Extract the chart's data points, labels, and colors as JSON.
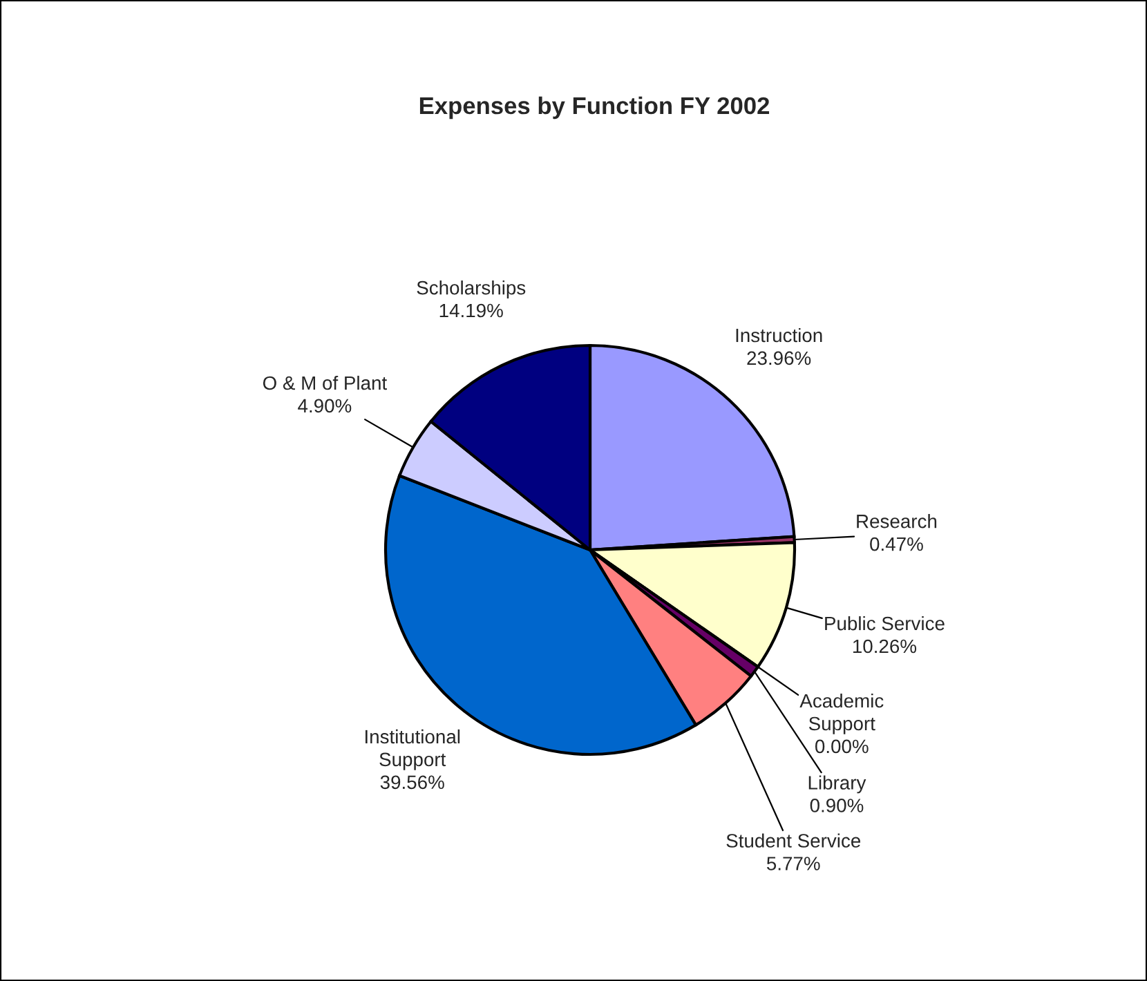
{
  "chart_data": {
    "type": "pie",
    "title": "Expenses by Function FY 2002",
    "categories": [
      "Instruction",
      "Research",
      "Public Service",
      "Academic Support",
      "Library",
      "Student Service",
      "Institutional Support",
      "O & M of Plant",
      "Scholarships"
    ],
    "values": [
      23.96,
      0.47,
      10.26,
      0.0,
      0.9,
      5.77,
      39.56,
      4.9,
      14.19
    ],
    "colors": [
      "#9999ff",
      "#993366",
      "#ffffcc",
      "#ccffff",
      "#660066",
      "#ff8080",
      "#0066cc",
      "#ccccff",
      "#000080"
    ],
    "value_labels": [
      "23.96%",
      "0.47%",
      "10.26%",
      "0.00%",
      "0.90%",
      "5.77%",
      "39.56%",
      "4.90%",
      "14.19%"
    ],
    "legend": false
  }
}
